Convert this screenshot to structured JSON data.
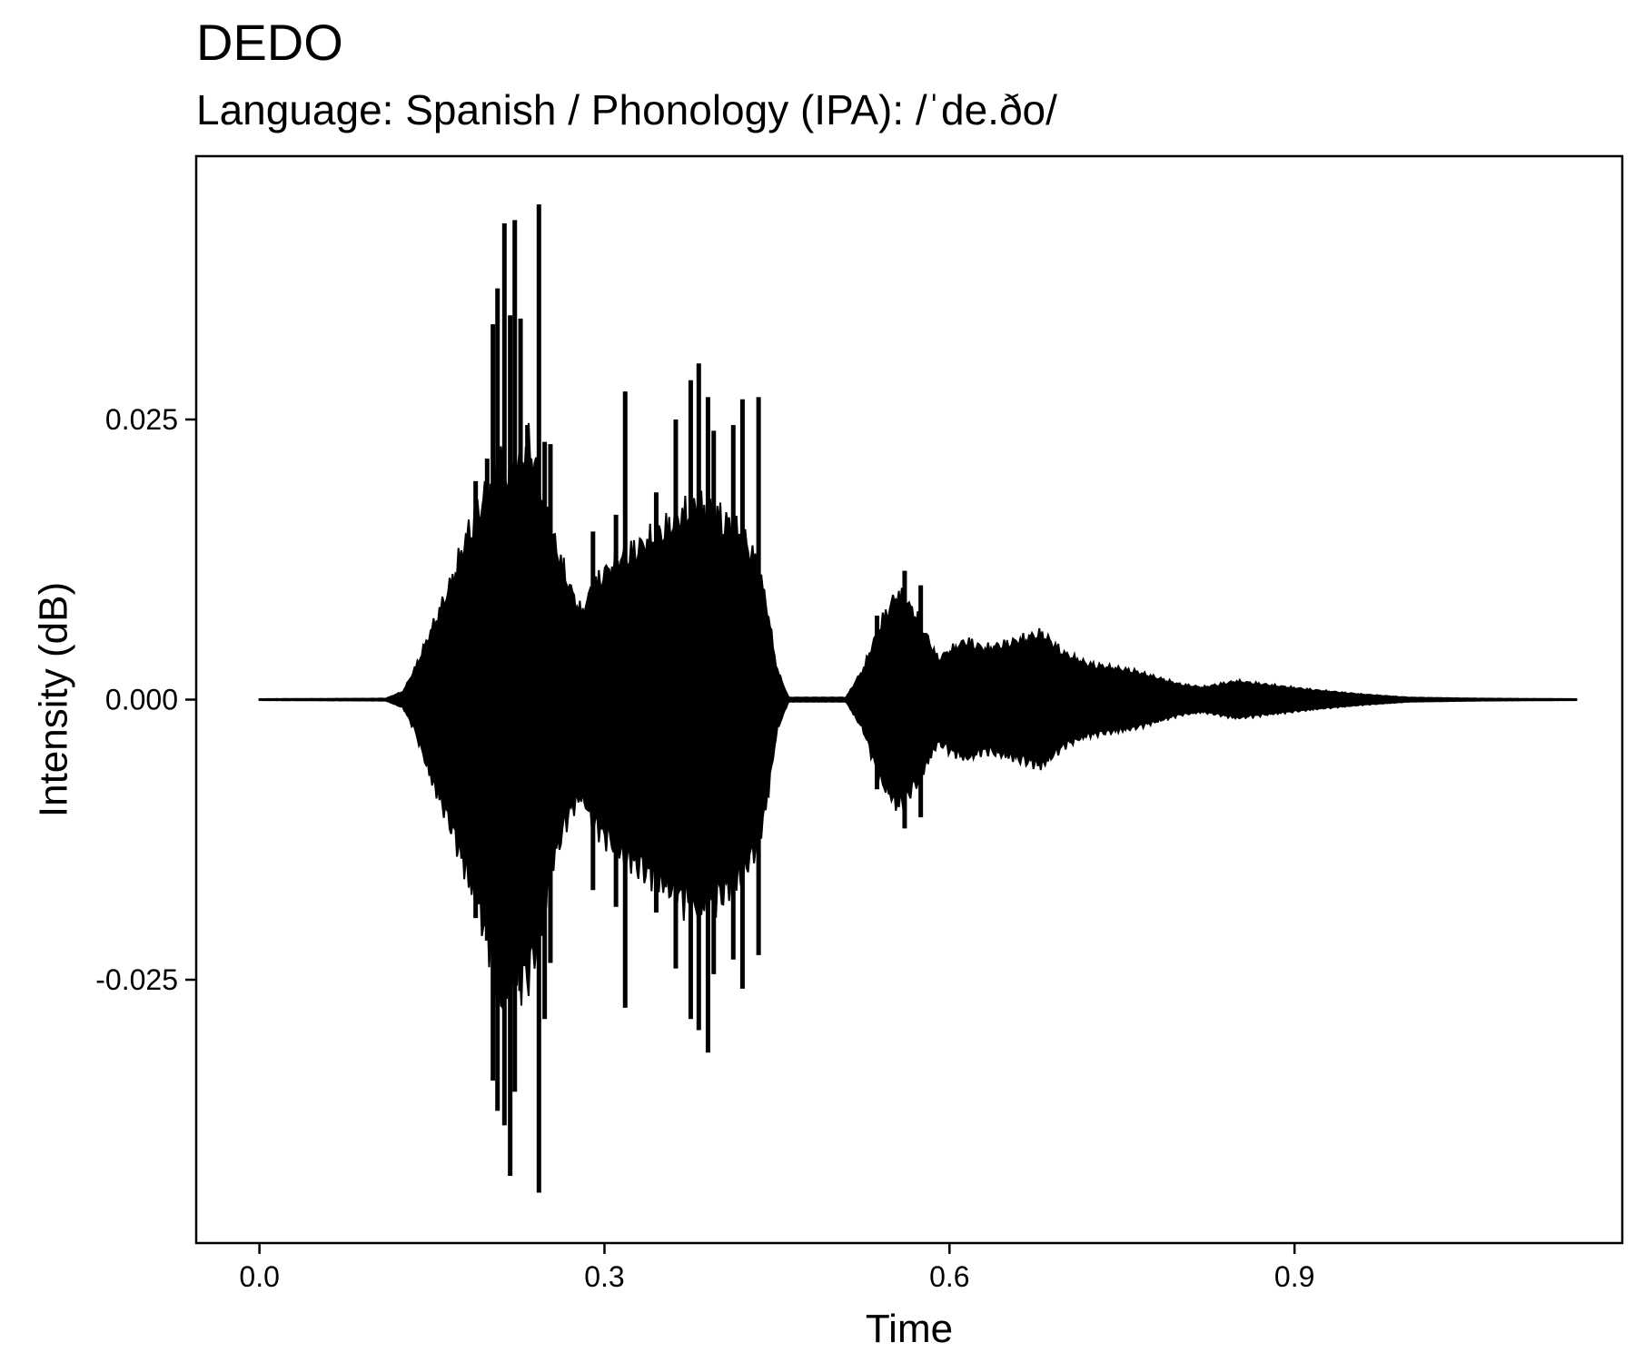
{
  "chart_data": {
    "type": "line",
    "title": "DEDO",
    "subtitle": "Language: Spanish / Phonology (IPA): /ˈde.ðo/",
    "xlabel": "Time",
    "ylabel": "Intensity (dB)",
    "xlim": [
      -0.055,
      1.185
    ],
    "ylim": [
      -0.0485,
      0.0485
    ],
    "x_ticks": [
      0.0,
      0.3,
      0.6,
      0.9
    ],
    "x_tick_labels": [
      "0.0",
      "0.3",
      "0.6",
      "0.9"
    ],
    "y_ticks": [
      -0.025,
      0.0,
      0.025
    ],
    "y_tick_labels": [
      "-0.025",
      "0.000",
      "0.025"
    ],
    "grid": false,
    "series_color": "#000000",
    "envelope": {
      "t": [
        0.0,
        0.11,
        0.125,
        0.135,
        0.15,
        0.165,
        0.18,
        0.2,
        0.21,
        0.22,
        0.235,
        0.245,
        0.255,
        0.27,
        0.28,
        0.29,
        0.3,
        0.31,
        0.33,
        0.35,
        0.365,
        0.38,
        0.4,
        0.42,
        0.43,
        0.44,
        0.45,
        0.46,
        0.51,
        0.525,
        0.54,
        0.555,
        0.57,
        0.59,
        0.6,
        0.615,
        0.63,
        0.65,
        0.68,
        0.7,
        0.72,
        0.76,
        0.8,
        0.82,
        0.85,
        0.88,
        0.92,
        0.96,
        1.0,
        1.06,
        1.145
      ],
      "pos": [
        5e-05,
        0.0001,
        0.0008,
        0.003,
        0.007,
        0.011,
        0.016,
        0.021,
        0.024,
        0.022,
        0.025,
        0.021,
        0.016,
        0.011,
        0.0085,
        0.011,
        0.0125,
        0.0135,
        0.015,
        0.0165,
        0.018,
        0.019,
        0.018,
        0.016,
        0.014,
        0.01,
        0.003,
        0.0002,
        0.0002,
        0.003,
        0.0075,
        0.0105,
        0.0085,
        0.004,
        0.0048,
        0.0058,
        0.005,
        0.0055,
        0.0065,
        0.0045,
        0.0035,
        0.0028,
        0.0015,
        0.0012,
        0.0018,
        0.0014,
        0.0009,
        0.0005,
        0.0002,
        0.0001,
        5e-05
      ],
      "neg": [
        5e-05,
        0.0001,
        0.0008,
        0.003,
        0.008,
        0.012,
        0.017,
        0.024,
        0.03,
        0.028,
        0.027,
        0.022,
        0.016,
        0.011,
        0.0095,
        0.012,
        0.0135,
        0.0145,
        0.0165,
        0.018,
        0.0195,
        0.0205,
        0.0195,
        0.017,
        0.015,
        0.011,
        0.003,
        0.0002,
        0.0002,
        0.003,
        0.008,
        0.0105,
        0.0085,
        0.0042,
        0.005,
        0.0058,
        0.005,
        0.0055,
        0.0065,
        0.0045,
        0.0035,
        0.0028,
        0.0015,
        0.0012,
        0.0018,
        0.0014,
        0.0009,
        0.0005,
        0.0002,
        0.0001,
        5e-05
      ]
    },
    "spikes": [
      {
        "t": 0.188,
        "y": 0.0195
      },
      {
        "t": 0.188,
        "y": -0.0195
      },
      {
        "t": 0.198,
        "y": 0.0215
      },
      {
        "t": 0.198,
        "y": -0.0215
      },
      {
        "t": 0.203,
        "y": 0.0335
      },
      {
        "t": 0.203,
        "y": -0.034
      },
      {
        "t": 0.207,
        "y": 0.0367
      },
      {
        "t": 0.207,
        "y": -0.0367
      },
      {
        "t": 0.213,
        "y": 0.0425
      },
      {
        "t": 0.213,
        "y": -0.038
      },
      {
        "t": 0.218,
        "y": 0.0343
      },
      {
        "t": 0.218,
        "y": -0.0425
      },
      {
        "t": 0.222,
        "y": 0.0428
      },
      {
        "t": 0.222,
        "y": -0.035
      },
      {
        "t": 0.227,
        "y": 0.034
      },
      {
        "t": 0.227,
        "y": -0.026
      },
      {
        "t": 0.233,
        "y": 0.0245
      },
      {
        "t": 0.233,
        "y": -0.023
      },
      {
        "t": 0.243,
        "y": 0.0442
      },
      {
        "t": 0.243,
        "y": -0.044
      },
      {
        "t": 0.248,
        "y": 0.023
      },
      {
        "t": 0.248,
        "y": -0.0285
      },
      {
        "t": 0.253,
        "y": 0.0228
      },
      {
        "t": 0.253,
        "y": -0.0235
      },
      {
        "t": 0.29,
        "y": 0.015
      },
      {
        "t": 0.29,
        "y": -0.017
      },
      {
        "t": 0.31,
        "y": 0.0165
      },
      {
        "t": 0.31,
        "y": -0.0185
      },
      {
        "t": 0.318,
        "y": 0.0275
      },
      {
        "t": 0.318,
        "y": -0.0275
      },
      {
        "t": 0.345,
        "y": 0.0185
      },
      {
        "t": 0.345,
        "y": -0.019
      },
      {
        "t": 0.362,
        "y": 0.025
      },
      {
        "t": 0.362,
        "y": -0.024
      },
      {
        "t": 0.375,
        "y": 0.0285
      },
      {
        "t": 0.375,
        "y": -0.0285
      },
      {
        "t": 0.382,
        "y": 0.03
      },
      {
        "t": 0.382,
        "y": -0.0295
      },
      {
        "t": 0.39,
        "y": 0.027
      },
      {
        "t": 0.39,
        "y": -0.0315
      },
      {
        "t": 0.395,
        "y": 0.024
      },
      {
        "t": 0.395,
        "y": -0.0245
      },
      {
        "t": 0.412,
        "y": 0.0245
      },
      {
        "t": 0.412,
        "y": -0.0232
      },
      {
        "t": 0.42,
        "y": 0.0268
      },
      {
        "t": 0.42,
        "y": -0.0258
      },
      {
        "t": 0.434,
        "y": 0.027
      },
      {
        "t": 0.434,
        "y": -0.0228
      },
      {
        "t": 0.537,
        "y": 0.0075
      },
      {
        "t": 0.537,
        "y": -0.008
      },
      {
        "t": 0.561,
        "y": 0.0115
      },
      {
        "t": 0.561,
        "y": -0.0115
      },
      {
        "t": 0.575,
        "y": 0.0102
      },
      {
        "t": 0.575,
        "y": -0.0105
      }
    ]
  }
}
